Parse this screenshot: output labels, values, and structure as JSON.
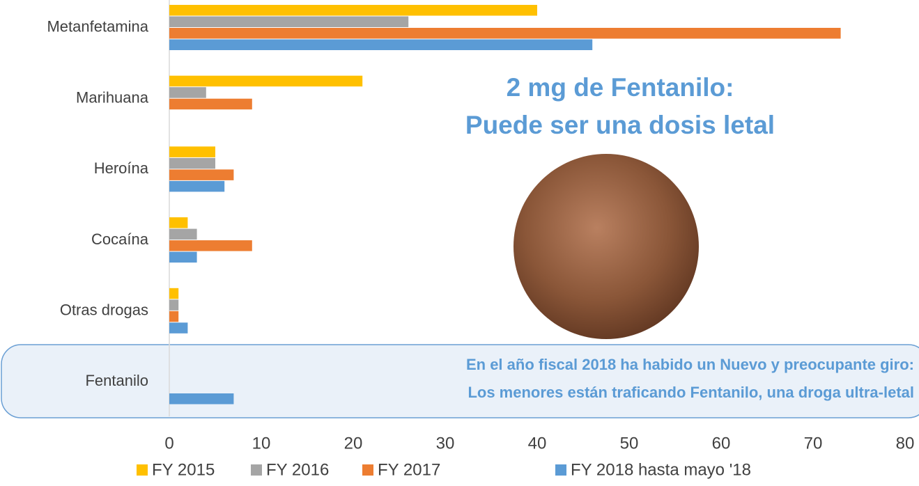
{
  "chart_data": {
    "type": "bar",
    "orientation": "horizontal",
    "categories": [
      "Metanfetamina",
      "Marihuana",
      "Heroína",
      "Cocaína",
      "Otras drogas",
      "Fentanilo"
    ],
    "series": [
      {
        "name": "FY 2015",
        "color": "#FFC000",
        "values": [
          40,
          21,
          5,
          2,
          1,
          0
        ]
      },
      {
        "name": "FY 2016",
        "color": "#A5A5A5",
        "values": [
          26,
          4,
          5,
          3,
          1,
          0
        ]
      },
      {
        "name": "FY 2017",
        "color": "#ED7D31",
        "values": [
          73,
          9,
          7,
          9,
          1,
          0
        ]
      },
      {
        "name": "FY 2018 hasta mayo '18",
        "color": "#5B9BD5",
        "values": [
          46,
          0,
          6,
          3,
          2,
          7
        ]
      }
    ],
    "xlim": [
      0,
      80
    ],
    "xticks": [
      0,
      10,
      20,
      30,
      40,
      50,
      60,
      70,
      80
    ],
    "grid": false,
    "legend": "bottom",
    "annotations": [
      "2 mg de Fentanilo:",
      "Puede ser una dosis letal",
      "En el año fiscal 2018 ha habido un Nuevo y preocupante giro:",
      "Los menores están traficando Fentanilo, una droga ultra-letal"
    ]
  }
}
